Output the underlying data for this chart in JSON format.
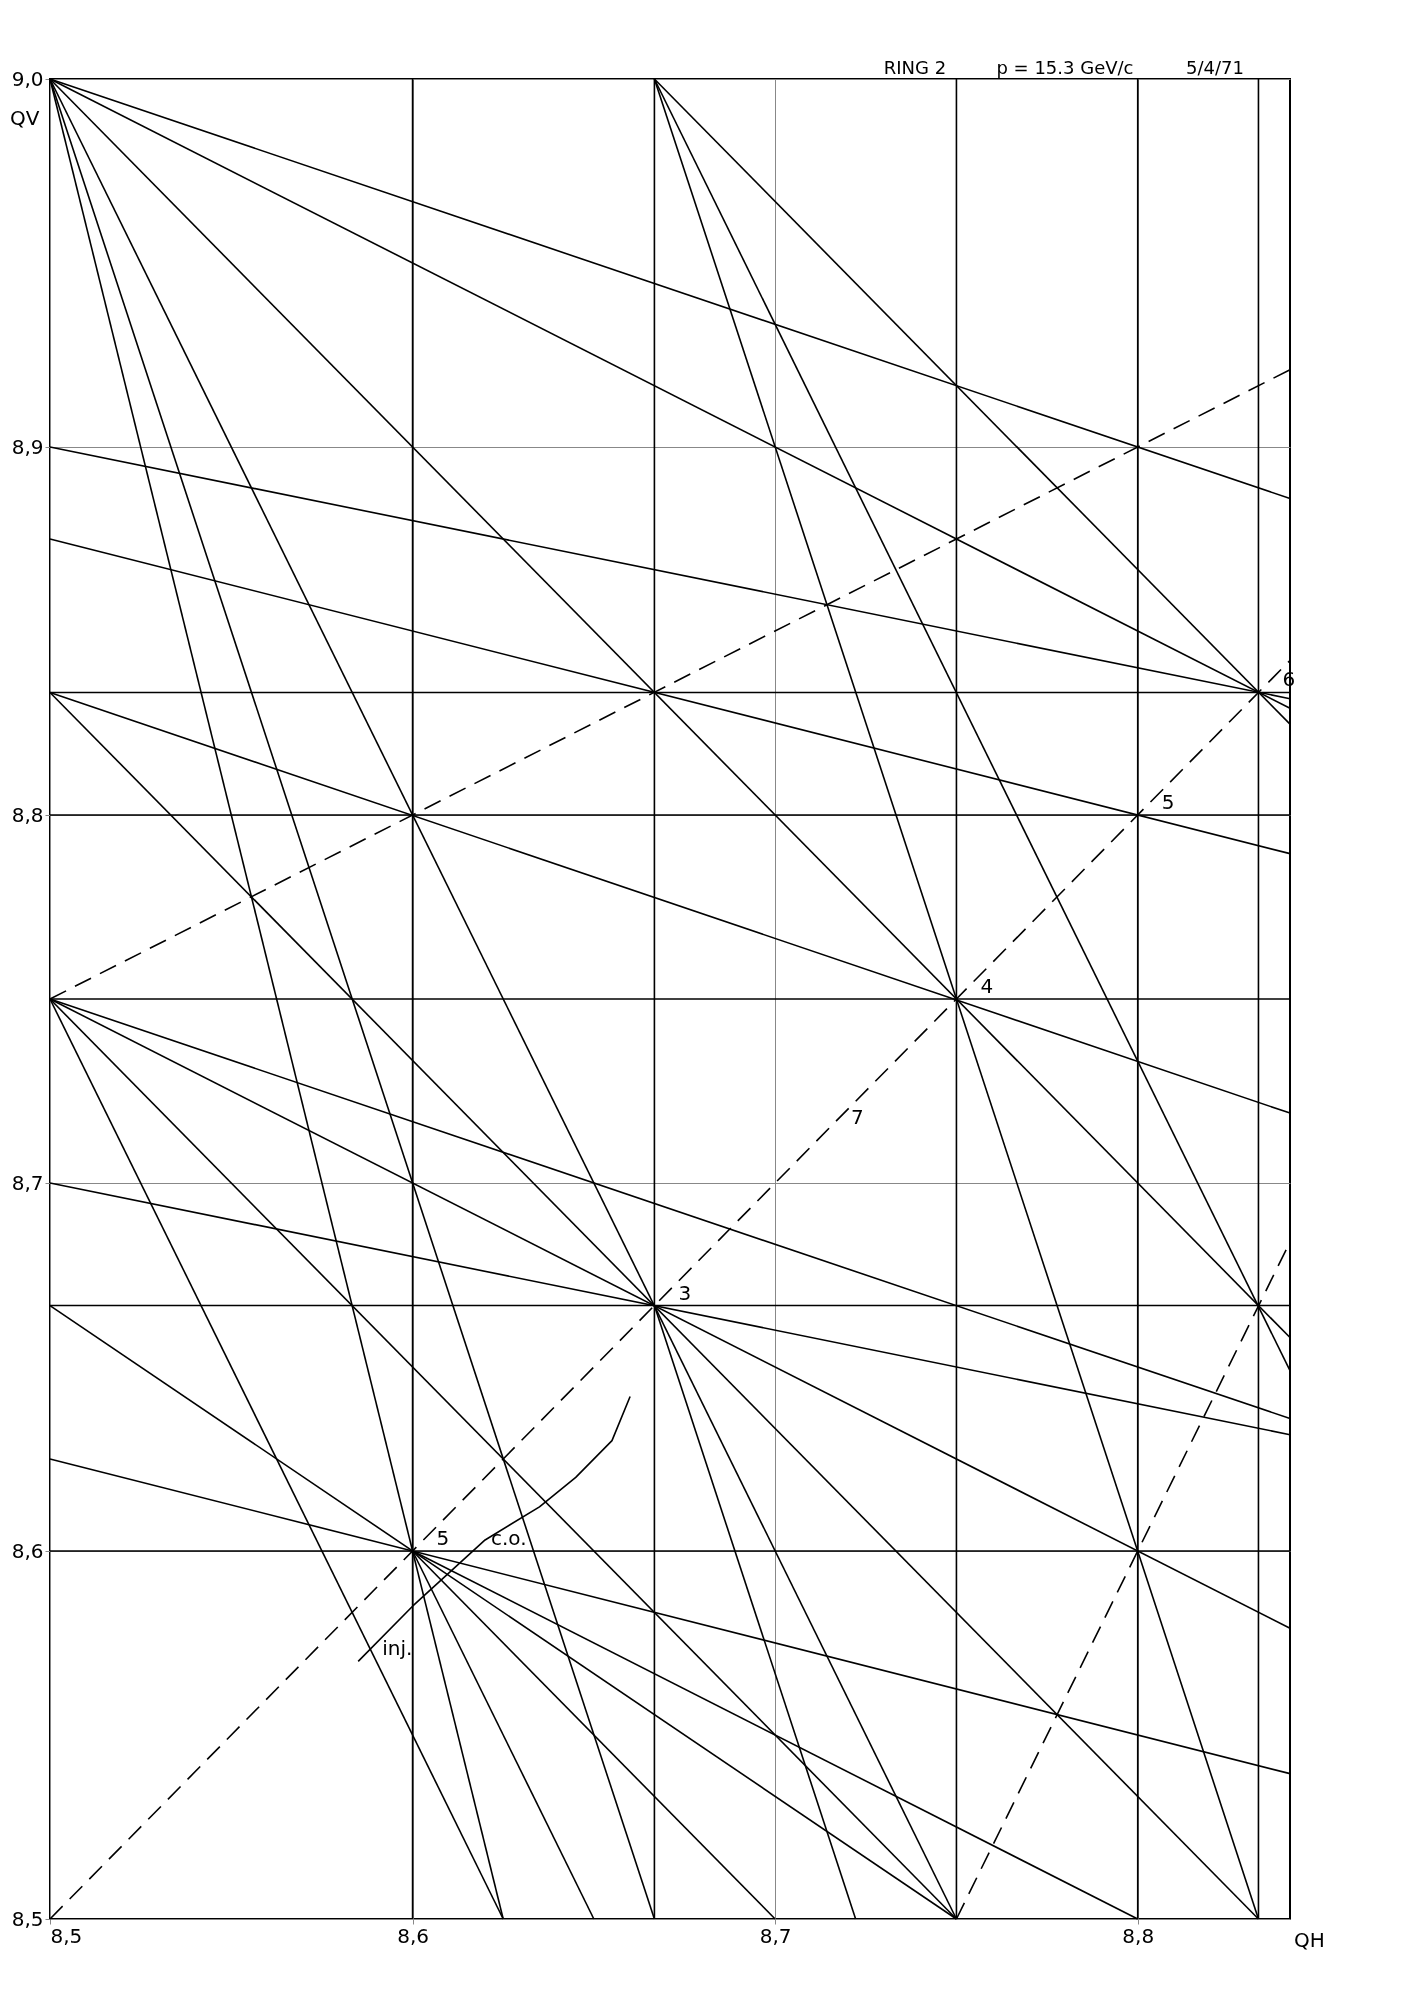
{
  "chart_data": {
    "type": "line",
    "xlabel": "QH",
    "ylabel": "QV",
    "xlim": [
      8.5,
      8.842
    ],
    "ylim": [
      8.5,
      9.0
    ],
    "xticks": [
      {
        "value": 8.5,
        "label": "8,5"
      },
      {
        "value": 8.6,
        "label": "8,6"
      },
      {
        "value": 8.7,
        "label": "8,7"
      },
      {
        "value": 8.8,
        "label": "8,8"
      }
    ],
    "yticks": [
      {
        "value": 8.5,
        "label": "8,5"
      },
      {
        "value": 8.6,
        "label": "8,6"
      },
      {
        "value": 8.7,
        "label": "8,7"
      },
      {
        "value": 8.8,
        "label": "8,8"
      },
      {
        "value": 8.9,
        "label": "8,9"
      },
      {
        "value": 9.0,
        "label": "9,0"
      }
    ],
    "grid": true,
    "marker": "none",
    "series": [
      {
        "color": "#000000",
        "x": [
          8.6,
          8.6
        ],
        "values": [
          8.5,
          9.0
        ]
      },
      {
        "color": "#000000",
        "x": [
          8.6667,
          8.6667
        ],
        "values": [
          8.5,
          9.0
        ]
      },
      {
        "color": "#000000",
        "x": [
          8.75,
          8.75
        ],
        "values": [
          8.5,
          9.0
        ]
      },
      {
        "color": "#000000",
        "x": [
          8.8,
          8.8
        ],
        "values": [
          8.5,
          9.0
        ]
      },
      {
        "color": "#000000",
        "x": [
          8.8333,
          8.8333
        ],
        "values": [
          8.5,
          9.0
        ]
      },
      {
        "color": "#000000",
        "x": [
          8.5,
          8.842
        ],
        "values": [
          8.6,
          8.6
        ]
      },
      {
        "color": "#000000",
        "x": [
          8.5,
          8.842
        ],
        "values": [
          8.6667,
          8.6667
        ]
      },
      {
        "color": "#000000",
        "x": [
          8.5,
          8.842
        ],
        "values": [
          8.75,
          8.75
        ]
      },
      {
        "color": "#000000",
        "x": [
          8.5,
          8.842
        ],
        "values": [
          8.8,
          8.8
        ]
      },
      {
        "color": "#000000",
        "x": [
          8.5,
          8.842
        ],
        "values": [
          8.8333,
          8.8333
        ]
      },
      {
        "color": "#000000",
        "x": [
          8.5,
          8.6667
        ],
        "values": [
          9.0,
          8.5
        ]
      },
      {
        "color": "#000000",
        "x": [
          8.5,
          8.625
        ],
        "values": [
          9.0,
          8.5
        ]
      },
      {
        "color": "#000000",
        "x": [
          8.5,
          8.75
        ],
        "values": [
          9.0,
          8.5
        ]
      },
      {
        "color": "#000000",
        "x": [
          8.5,
          8.842
        ],
        "values": [
          9.0,
          8.658
        ]
      },
      {
        "color": "#000000",
        "x": [
          8.5,
          8.842
        ],
        "values": [
          9.0,
          8.829
        ]
      },
      {
        "color": "#000000",
        "x": [
          8.5,
          8.842
        ],
        "values": [
          9.0,
          8.886
        ]
      },
      {
        "color": "#000000",
        "x": [
          8.6667,
          8.842
        ],
        "values": [
          9.0,
          8.8247
        ]
      },
      {
        "color": "#000000",
        "x": [
          8.6667,
          8.842
        ],
        "values": [
          9.0,
          8.649
        ]
      },
      {
        "color": "#000000",
        "x": [
          8.6667,
          8.8333
        ],
        "values": [
          9.0,
          8.5
        ]
      },
      {
        "color": "#000000",
        "line_style": "dashed",
        "x": [
          8.5,
          8.842
        ],
        "values": [
          8.75,
          8.921
        ]
      },
      {
        "color": "#000000",
        "line_style": "dashed",
        "x": [
          8.5,
          8.842
        ],
        "values": [
          8.5,
          8.842
        ]
      },
      {
        "color": "#000000",
        "line_style": "dashed",
        "x": [
          8.75,
          8.842
        ],
        "values": [
          8.5,
          8.684
        ]
      },
      {
        "color": "#000000",
        "x": [
          8.5,
          8.842
        ],
        "values": [
          8.75,
          8.579
        ]
      },
      {
        "color": "#000000",
        "x": [
          8.5,
          8.75
        ],
        "values": [
          8.75,
          8.5
        ]
      },
      {
        "color": "#000000",
        "x": [
          8.5,
          8.625
        ],
        "values": [
          8.75,
          8.5
        ]
      },
      {
        "color": "#000000",
        "x": [
          8.5,
          8.842
        ],
        "values": [
          8.75,
          8.636
        ]
      },
      {
        "color": "#000000",
        "x": [
          8.5,
          8.8333
        ],
        "values": [
          8.8333,
          8.5
        ]
      },
      {
        "color": "#000000",
        "x": [
          8.5,
          8.842
        ],
        "values": [
          8.8333,
          8.719
        ]
      },
      {
        "color": "#000000",
        "x": [
          8.5,
          8.842
        ],
        "values": [
          8.875,
          8.7895
        ]
      },
      {
        "color": "#000000",
        "x": [
          8.5,
          8.842
        ],
        "values": [
          8.9,
          8.8316
        ]
      },
      {
        "color": "#000000",
        "x": [
          8.5,
          8.842
        ],
        "values": [
          8.7,
          8.6316
        ]
      },
      {
        "color": "#000000",
        "x": [
          8.5,
          8.75
        ],
        "values": [
          8.6667,
          8.5
        ]
      },
      {
        "color": "#000000",
        "x": [
          8.5,
          8.842
        ],
        "values": [
          8.625,
          8.5395
        ]
      },
      {
        "color": "#000000",
        "x": [
          8.6,
          8.8
        ],
        "values": [
          8.6,
          8.5
        ]
      },
      {
        "color": "#000000",
        "x": [
          8.6,
          8.7
        ],
        "values": [
          8.6,
          8.5
        ]
      },
      {
        "color": "#000000",
        "x": [
          8.6,
          8.65
        ],
        "values": [
          8.6,
          8.5
        ]
      },
      {
        "color": "#000000",
        "x": [
          8.6667,
          8.7222
        ],
        "values": [
          8.6667,
          8.5
        ]
      },
      {
        "color": "#000000",
        "x": [
          8.585,
          8.6,
          8.62,
          8.635,
          8.645,
          8.655,
          8.66
        ],
        "values": [
          8.57,
          8.585,
          8.603,
          8.612,
          8.62,
          8.63,
          8.642
        ]
      }
    ],
    "annotations": [
      "RING 2",
      "p = 15.3 GeV/c",
      "5/4/71",
      {
        "text": "3",
        "x": 8.6667,
        "y": 8.6667
      },
      {
        "text": "4",
        "x": 8.75,
        "y": 8.75
      },
      {
        "text": "5",
        "x": 8.8,
        "y": 8.8
      },
      {
        "text": "5",
        "x": 8.6,
        "y": 8.6
      },
      {
        "text": "6",
        "x": 8.8333,
        "y": 8.8333
      },
      {
        "text": "7",
        "x": 8.7143,
        "y": 8.7143
      },
      {
        "text": "c.o.",
        "x": 8.615,
        "y": 8.6
      },
      {
        "text": "inj.",
        "x": 8.585,
        "y": 8.57
      }
    ]
  }
}
